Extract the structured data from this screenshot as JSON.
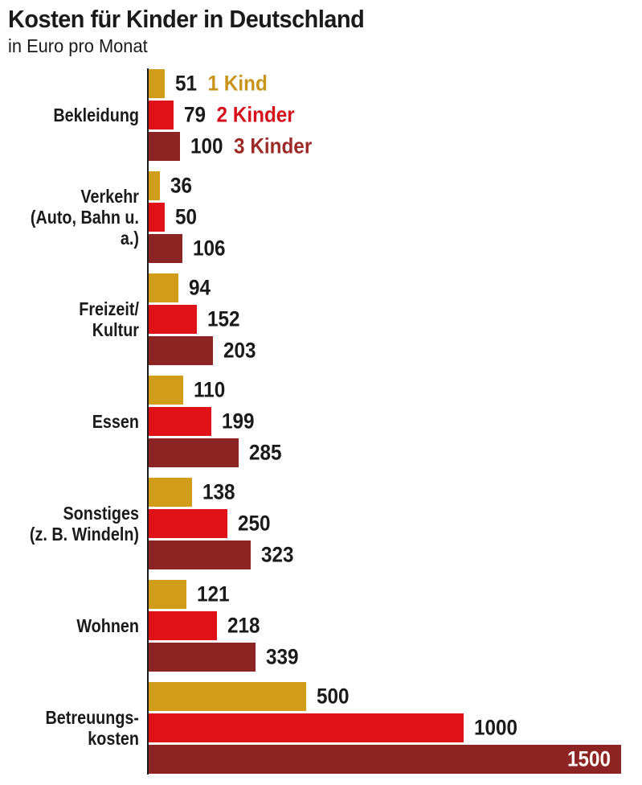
{
  "chart_data": {
    "type": "bar",
    "orientation": "horizontal",
    "title": "Kosten für Kinder in Deutschland",
    "subtitle": "in Euro pro Monat",
    "unit": "Euro pro Monat",
    "categories": [
      "Bekleidung",
      "Verkehr\n(Auto, Bahn u. a.)",
      "Freizeit/\nKultur",
      "Essen",
      "Sonstiges\n(z. B. Windeln)",
      "Wohnen",
      "Betreuungs-\nkosten"
    ],
    "series": [
      {
        "name": "1 Kind",
        "color": "#d19c17",
        "legend_text_color": "#c8941b",
        "values": [
          51,
          36,
          94,
          110,
          138,
          121,
          500
        ]
      },
      {
        "name": "2 Kinder",
        "color": "#e11118",
        "legend_text_color": "#d6121c",
        "values": [
          79,
          50,
          152,
          199,
          250,
          218,
          1000
        ]
      },
      {
        "name": "3 Kinder",
        "color": "#8c2423",
        "legend_text_color": "#9c2b28",
        "values": [
          100,
          106,
          203,
          285,
          323,
          339,
          1500
        ]
      }
    ],
    "xmax": 1500,
    "grid": false,
    "legend_position": "inline-first-group",
    "value_labels": "outside-right, except 1500 which is white inside the bar",
    "axis_line_color": "#1a1a1a",
    "text_color": "#1a1a1a"
  }
}
